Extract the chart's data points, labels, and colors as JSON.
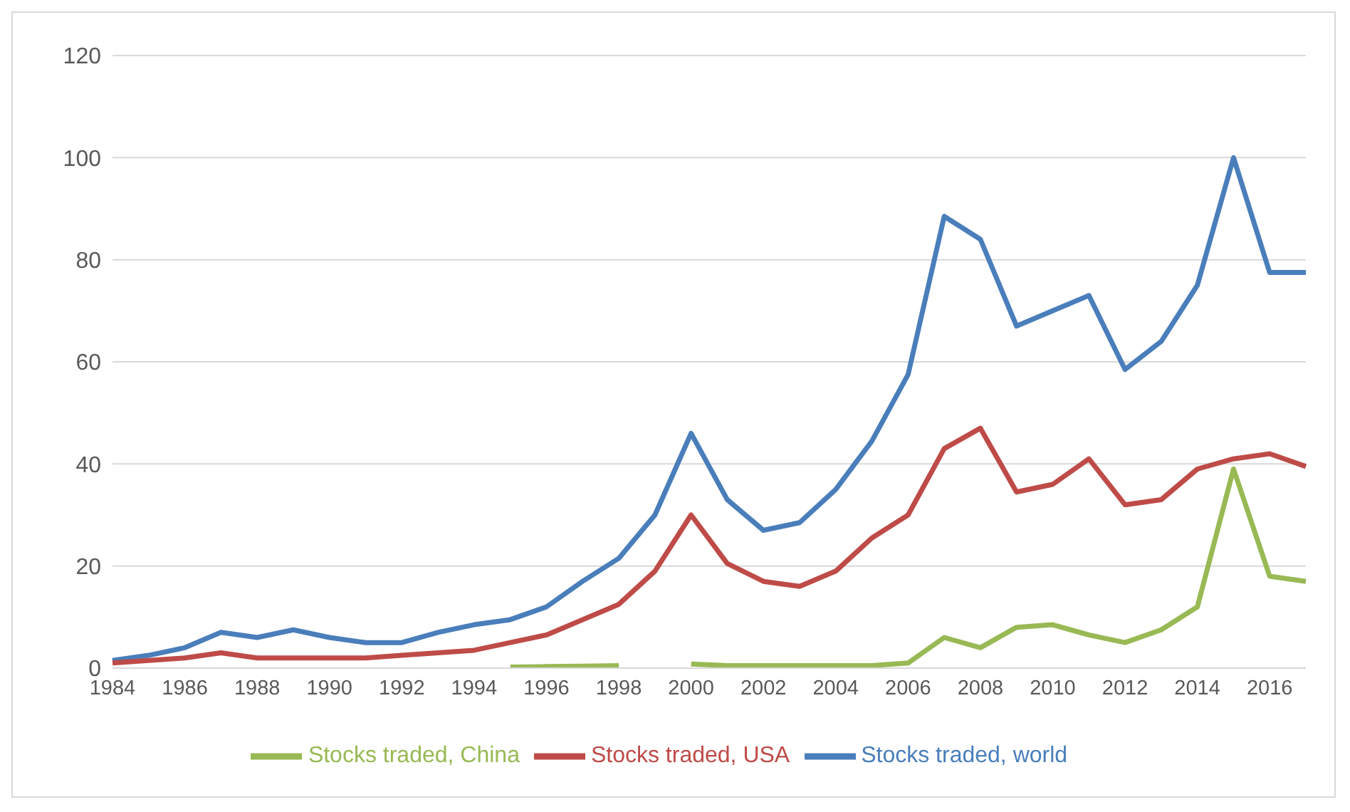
{
  "chart_data": {
    "type": "line",
    "categories": [
      "1984",
      null,
      "1986",
      null,
      "1988",
      null,
      "1990",
      null,
      "1992",
      null,
      "1994",
      null,
      "1996",
      null,
      "1998",
      null,
      "2000",
      null,
      "2002",
      null,
      "2004",
      null,
      "2006",
      null,
      "2008",
      null,
      "2010",
      null,
      "2012",
      null,
      "2014",
      null,
      "2016",
      null
    ],
    "series": [
      {
        "name": "Stocks traded, world",
        "color": "#4a7ebb",
        "values": [
          1.5,
          2.5,
          4,
          7,
          6,
          7.5,
          6,
          5,
          5,
          7,
          8.5,
          9.5,
          12,
          17,
          21.5,
          30,
          46,
          33,
          27,
          28.5,
          35,
          44.5,
          57.5,
          88.5,
          84,
          67,
          70,
          73,
          58.5,
          64,
          75,
          100,
          77.5,
          77.5
        ]
      },
      {
        "name": "Stocks traded, USA",
        "color": "#be4b48",
        "values": [
          1,
          1.5,
          2,
          3,
          2,
          2,
          2,
          2,
          2.5,
          3,
          3.5,
          5,
          6.5,
          9.5,
          12.5,
          19,
          30,
          20.5,
          17,
          16,
          19,
          25.5,
          30,
          43,
          47,
          34.5,
          36,
          41,
          32,
          33,
          39,
          41,
          42,
          39.5
        ]
      },
      {
        "name": "Stocks traded, China",
        "color": "#98b954",
        "values": [
          null,
          null,
          null,
          null,
          null,
          null,
          null,
          null,
          null,
          null,
          null,
          0.2,
          0.3,
          0.4,
          0.5,
          null,
          0.8,
          0.5,
          0.5,
          0.5,
          0.5,
          0.5,
          1,
          6,
          4,
          8,
          8.5,
          6.5,
          5,
          7.5,
          12,
          39,
          18,
          17
        ]
      }
    ],
    "ylim": [
      0,
      120
    ],
    "yticks": [
      0,
      20,
      40,
      60,
      80,
      100,
      120
    ],
    "grid": "y",
    "legend": "bottom",
    "marker": "none",
    "line_style": "solid"
  }
}
